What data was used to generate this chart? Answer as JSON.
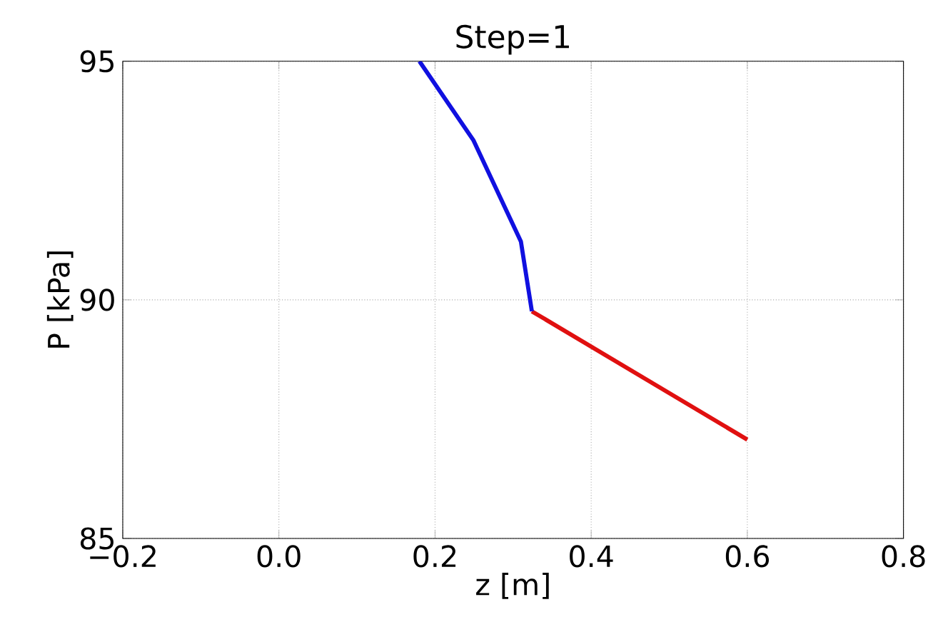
{
  "chart_data": {
    "type": "line",
    "title": "Step=1",
    "xlabel": "z [m]",
    "ylabel": "P [kPa]",
    "xlim": [
      -0.2,
      0.8
    ],
    "ylim": [
      85,
      95
    ],
    "xticks": [
      {
        "value": -0.2,
        "label": "−0.2"
      },
      {
        "value": 0,
        "label": "0.0"
      },
      {
        "value": 0.2,
        "label": "0.2"
      },
      {
        "value": 0.4,
        "label": "0.4"
      },
      {
        "value": 0.6,
        "label": "0.6"
      },
      {
        "value": 0.8,
        "label": "0.8"
      }
    ],
    "yticks": [
      85,
      90,
      95
    ],
    "grid": true,
    "series": [
      {
        "color": "#e01010",
        "x": [
          0.324,
          0.6
        ],
        "values": [
          89.76,
          87.07
        ]
      },
      {
        "color": "#1010e0",
        "x": [
          0.18,
          0.249,
          0.31,
          0.324
        ],
        "values": [
          95,
          93.35,
          91.22,
          89.76
        ]
      }
    ]
  }
}
